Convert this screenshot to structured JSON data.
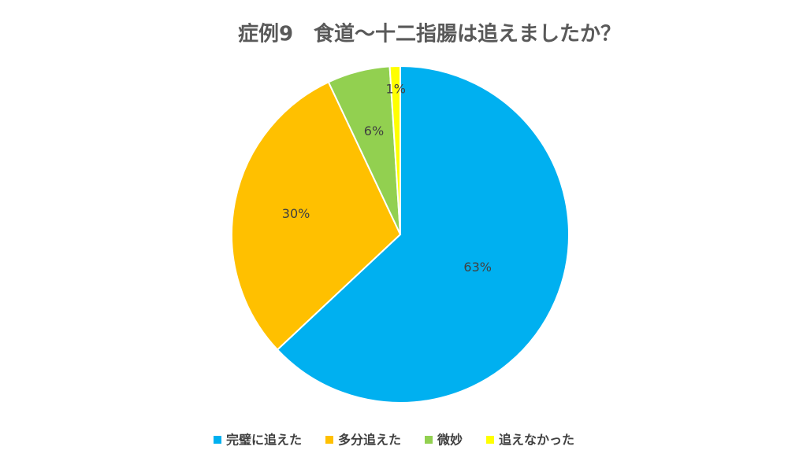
{
  "chart_data": {
    "type": "pie",
    "title": "症例9　食道～十二指腸は追えましたか？",
    "categories": [
      "完璧に追えた",
      "多分追えた",
      "微妙",
      "追えなかった"
    ],
    "values": [
      63,
      30,
      6,
      1
    ],
    "value_labels": [
      "63%",
      "30%",
      "6%",
      "1%"
    ],
    "colors": [
      "#00b0f0",
      "#ffc000",
      "#92d050",
      "#ffff00"
    ],
    "legend": "bottom"
  }
}
